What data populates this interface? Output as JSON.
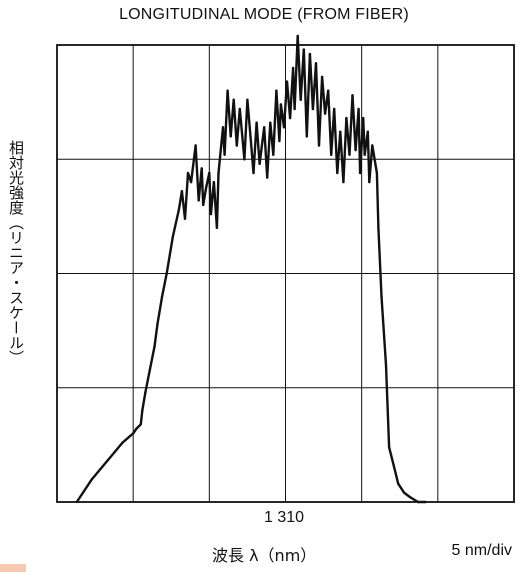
{
  "chart_data": {
    "type": "line",
    "title": "LONGITUDINAL MODE (FROM FIBER)",
    "ylabel": "相対光強度（リニア・スケール）",
    "xlabel": "波長 λ（nm）",
    "x_ticks": [
      "1 310"
    ],
    "scale_note": "5 nm/div",
    "grid": true,
    "grid_divisions": {
      "x": 6,
      "y": 4
    },
    "x_unit": "nm",
    "x_center": 1310,
    "x_per_div": 5,
    "xlim": [
      1295,
      1325
    ],
    "ylim": [
      0,
      1
    ],
    "series": [
      {
        "x": [
          1296.3,
          1297.3,
          1298.3,
          1299.3,
          1300.0,
          1300.2,
          1300.5,
          1300.6,
          1300.8,
          1301.1,
          1301.4,
          1301.6,
          1301.9,
          1302.2,
          1302.6,
          1303.0,
          1303.2,
          1303.4,
          1303.6,
          1303.8,
          1304.1,
          1304.3,
          1304.5,
          1304.6,
          1304.8,
          1305.0,
          1305.1,
          1305.3,
          1305.5,
          1305.6,
          1305.9,
          1306.0,
          1306.2,
          1306.4,
          1306.6,
          1306.8,
          1307.0,
          1307.3,
          1307.5,
          1307.7,
          1307.9,
          1308.1,
          1308.3,
          1308.6,
          1308.8,
          1309.0,
          1309.2,
          1309.4,
          1309.6,
          1309.7,
          1309.9,
          1310.1,
          1310.3,
          1310.5,
          1310.6,
          1310.8,
          1311.0,
          1311.2,
          1311.4,
          1311.6,
          1311.8,
          1312.0,
          1312.2,
          1312.4,
          1312.6,
          1312.8,
          1313.0,
          1313.2,
          1313.4,
          1313.6,
          1313.8,
          1314.0,
          1314.2,
          1314.4,
          1314.6,
          1314.8,
          1314.9,
          1315.1,
          1315.2,
          1315.4,
          1315.5,
          1315.7,
          1316.0,
          1316.1,
          1316.3,
          1316.6,
          1316.8,
          1317.1,
          1317.4,
          1317.8,
          1318.2,
          1318.7,
          1319.2
        ],
        "values": [
          0.0,
          0.05,
          0.09,
          0.13,
          0.15,
          0.16,
          0.17,
          0.2,
          0.24,
          0.29,
          0.34,
          0.39,
          0.45,
          0.5,
          0.58,
          0.64,
          0.68,
          0.62,
          0.72,
          0.7,
          0.78,
          0.66,
          0.73,
          0.65,
          0.69,
          0.72,
          0.63,
          0.7,
          0.6,
          0.72,
          0.82,
          0.76,
          0.9,
          0.8,
          0.88,
          0.78,
          0.86,
          0.75,
          0.88,
          0.8,
          0.72,
          0.83,
          0.74,
          0.82,
          0.71,
          0.83,
          0.76,
          0.9,
          0.79,
          0.87,
          0.82,
          0.92,
          0.84,
          0.95,
          0.86,
          1.02,
          0.88,
          0.99,
          0.8,
          0.98,
          0.86,
          0.96,
          0.78,
          0.93,
          0.85,
          0.9,
          0.76,
          0.86,
          0.72,
          0.81,
          0.7,
          0.84,
          0.76,
          0.89,
          0.77,
          0.86,
          0.72,
          0.84,
          0.76,
          0.81,
          0.7,
          0.78,
          0.72,
          0.6,
          0.45,
          0.3,
          0.12,
          0.08,
          0.04,
          0.02,
          0.01,
          0.0,
          0.0
        ]
      }
    ]
  }
}
